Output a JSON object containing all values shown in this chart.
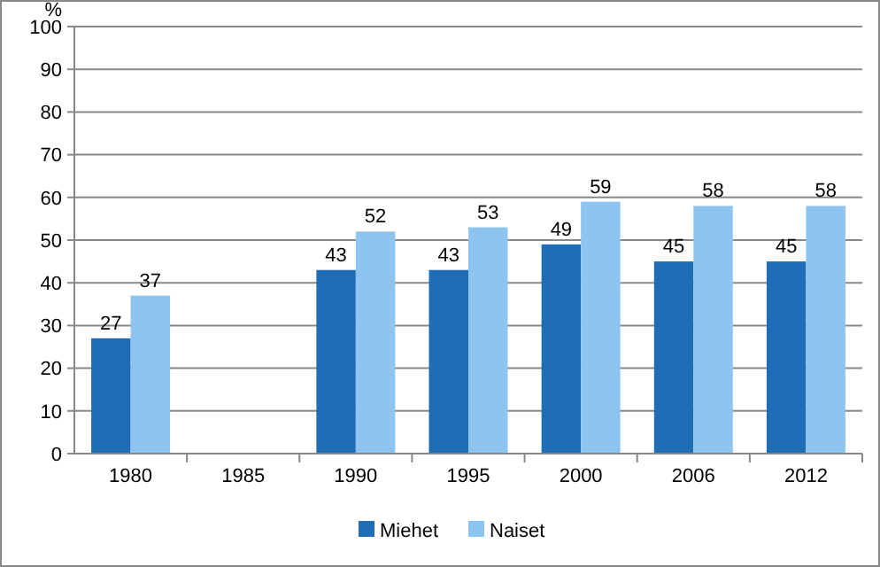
{
  "chart_data": {
    "type": "bar",
    "ylabel": "%",
    "categories": [
      "1980",
      "1985",
      "1990",
      "1995",
      "2000",
      "2006",
      "2012"
    ],
    "series": [
      {
        "name": "Miehet",
        "color": "#1f6db5",
        "values": [
          27,
          null,
          43,
          43,
          49,
          45,
          45
        ]
      },
      {
        "name": "Naiset",
        "color": "#8ec4f0",
        "values": [
          37,
          null,
          52,
          53,
          59,
          58,
          58
        ]
      }
    ],
    "ylim": [
      0,
      100
    ],
    "yticks": [
      0,
      10,
      20,
      30,
      40,
      50,
      60,
      70,
      80,
      90,
      100
    ],
    "grid": "y",
    "legend": "bottom",
    "data_labels": true
  }
}
